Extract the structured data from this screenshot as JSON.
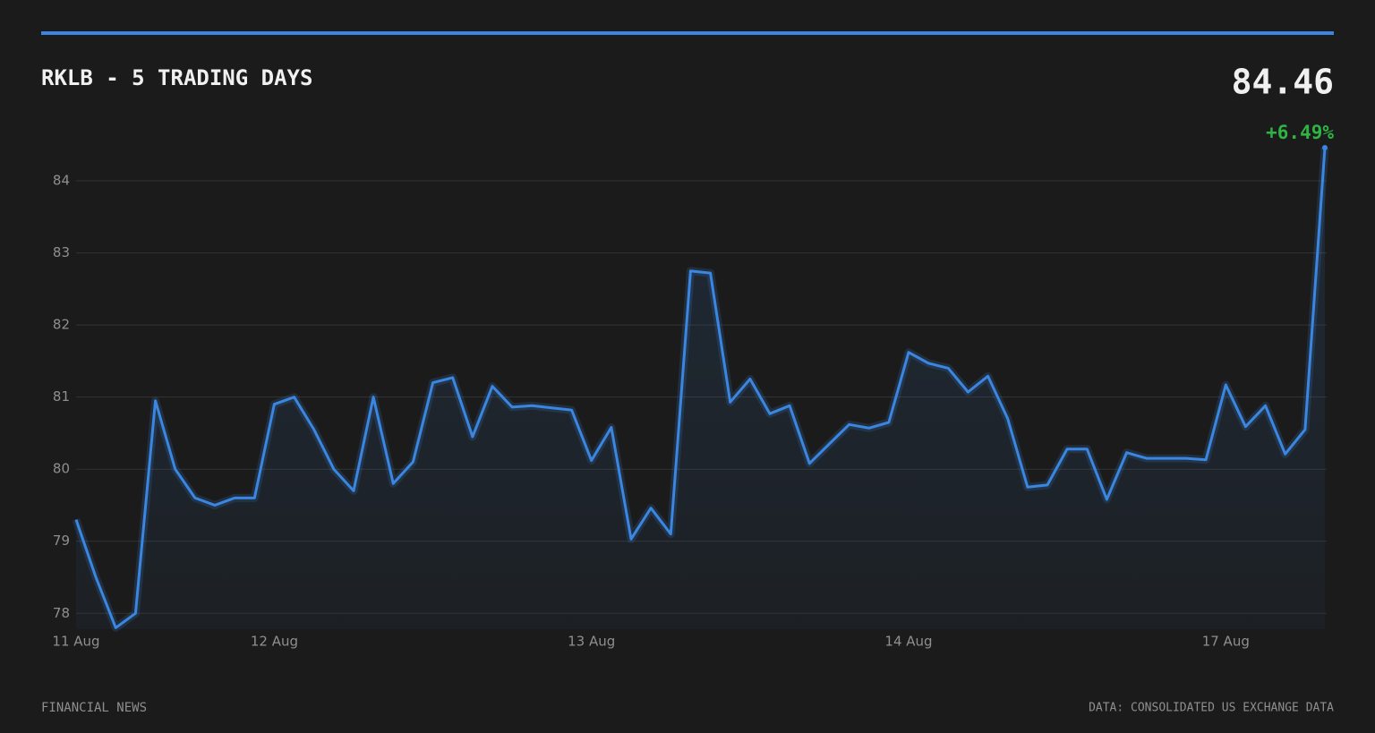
{
  "chart_data": {
    "type": "line",
    "title": "RKLB - 5 TRADING DAYS",
    "last_price": "84.46",
    "change": "+6.49%",
    "footer_left": "FINANCIAL NEWS",
    "footer_right": "DATA: CONSOLIDATED US EXCHANGE DATA",
    "categories": [
      "11 Aug",
      null,
      null,
      null,
      null,
      null,
      null,
      null,
      null,
      null,
      "12 Aug",
      null,
      null,
      null,
      null,
      null,
      null,
      null,
      null,
      null,
      null,
      null,
      null,
      null,
      null,
      null,
      "13 Aug",
      null,
      null,
      null,
      null,
      null,
      null,
      null,
      null,
      null,
      null,
      null,
      null,
      null,
      null,
      null,
      "14 Aug",
      null,
      null,
      null,
      null,
      null,
      null,
      null,
      null,
      null,
      null,
      null,
      null,
      null,
      null,
      null,
      "17 Aug",
      null,
      null,
      null,
      null,
      null
    ],
    "series": [
      {
        "color": "#3a86e0",
        "values": [
          79.3,
          78.5,
          77.8,
          78.0,
          80.95,
          80.0,
          79.6,
          79.5,
          79.6,
          79.6,
          80.9,
          81.0,
          80.55,
          80.0,
          79.7,
          81.0,
          79.8,
          80.1,
          81.2,
          81.27,
          80.45,
          81.15,
          80.86,
          80.88,
          80.85,
          80.82,
          80.12,
          80.58,
          79.03,
          79.46,
          79.1,
          82.75,
          82.72,
          80.93,
          81.25,
          80.77,
          80.88,
          80.08,
          80.35,
          80.62,
          80.57,
          80.65,
          81.62,
          81.47,
          81.4,
          81.07,
          81.29,
          80.7,
          79.75,
          79.78,
          80.28,
          80.28,
          79.58,
          80.23,
          80.15,
          80.15,
          80.15,
          80.13,
          81.17,
          80.59,
          80.88,
          80.21,
          80.55,
          84.46
        ]
      }
    ],
    "ylim": [
      77.78,
      84.46
    ],
    "yticks": [
      78,
      79,
      80,
      81,
      82,
      83,
      84
    ],
    "grid": true
  }
}
